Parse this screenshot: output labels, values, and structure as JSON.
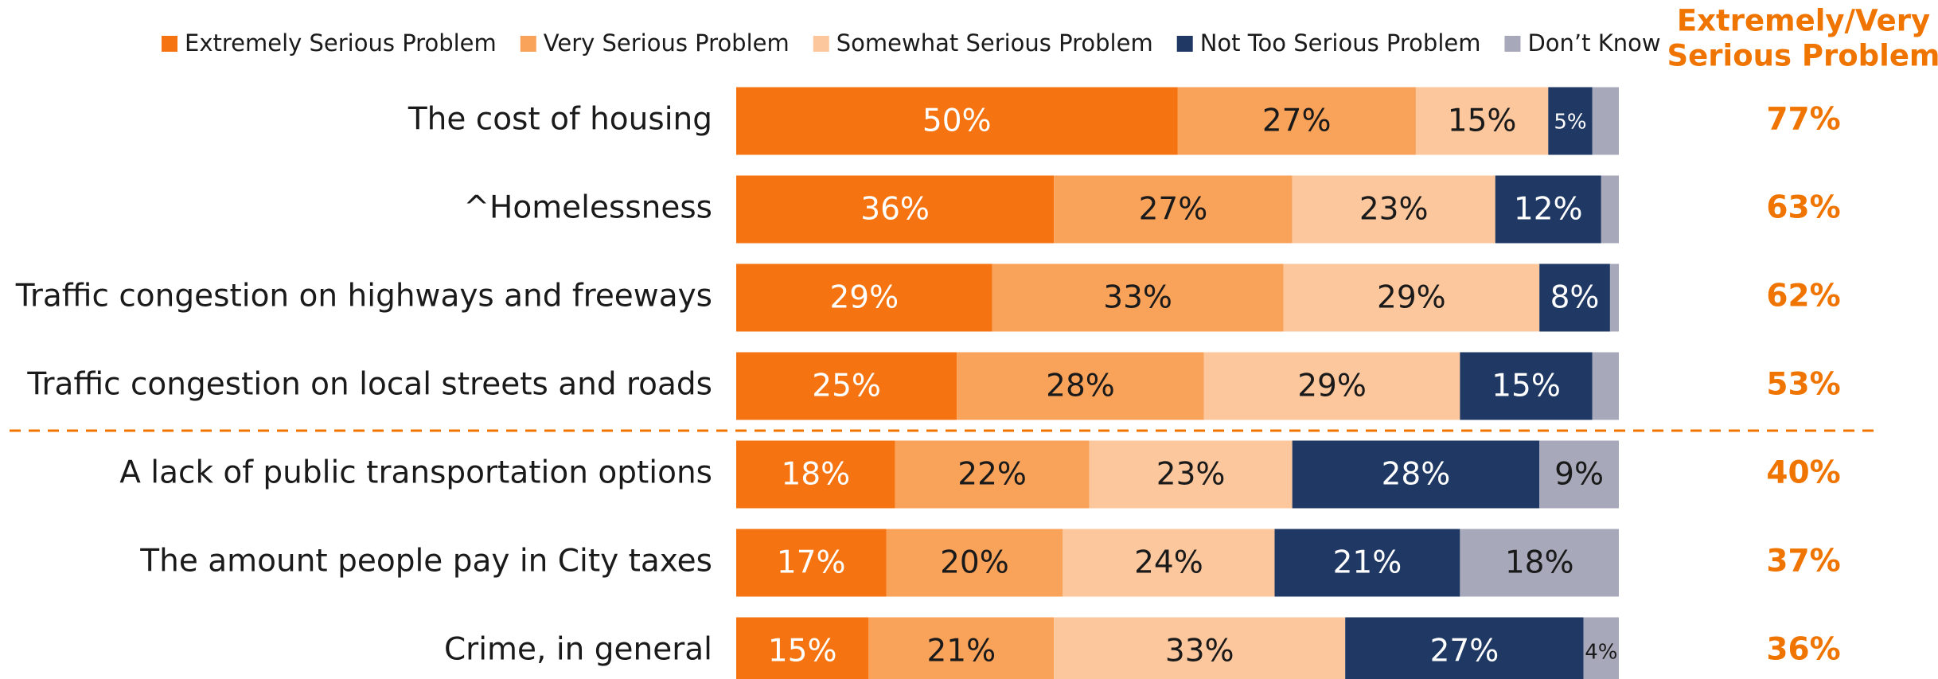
{
  "chart_data": {
    "type": "stacked-bar-horizontal",
    "categories": [
      "The cost of housing",
      "^Homelessness",
      "Traffic congestion on highways and freeways",
      "Traffic congestion on local streets and roads",
      "A lack of public transportation options",
      "The amount people pay in City taxes",
      "Crime, in general"
    ],
    "xlim": [
      0,
      100
    ],
    "series": [
      {
        "name": "Extremely Serious Problem",
        "color": "#f57310",
        "label_color": "#ffffff",
        "values": [
          50,
          36,
          29,
          25,
          18,
          17,
          15
        ],
        "value_labels": [
          "50%",
          "36%",
          "29%",
          "25%",
          "18%",
          "17%",
          "15%"
        ]
      },
      {
        "name": "Very Serious Problem",
        "color": "#f9a25a",
        "label_color": "#1a1a1a",
        "values": [
          27,
          27,
          33,
          28,
          22,
          20,
          21
        ],
        "value_labels": [
          "27%",
          "27%",
          "33%",
          "28%",
          "22%",
          "20%",
          "21%"
        ]
      },
      {
        "name": "Somewhat Serious Problem",
        "color": "#fcc79d",
        "label_color": "#1a1a1a",
        "values": [
          15,
          23,
          29,
          29,
          23,
          24,
          33
        ],
        "value_labels": [
          "15%",
          "23%",
          "29%",
          "29%",
          "23%",
          "24%",
          "33%"
        ]
      },
      {
        "name": "Not Too Serious Problem",
        "color": "#1f3864",
        "label_color": "#ffffff",
        "values": [
          5,
          12,
          8,
          15,
          28,
          21,
          27
        ],
        "value_labels": [
          "5%",
          "12%",
          "8%",
          "15%",
          "28%",
          "21%",
          "27%"
        ]
      },
      {
        "name": "Don’t Know",
        "color": "#a7a9ba",
        "label_color": "#1a1a1a",
        "values": [
          3,
          2,
          1,
          3,
          9,
          18,
          4
        ],
        "value_labels": [
          null,
          null,
          null,
          null,
          "9%",
          "18%",
          "4%"
        ]
      }
    ],
    "totals": {
      "title": [
        "Extremely/Very",
        "Serious Problem"
      ],
      "color": "#f07400",
      "values": [
        77,
        63,
        62,
        53,
        40,
        37,
        36
      ],
      "value_labels": [
        "77%",
        "63%",
        "62%",
        "53%",
        "40%",
        "37%",
        "36%"
      ]
    }
  }
}
